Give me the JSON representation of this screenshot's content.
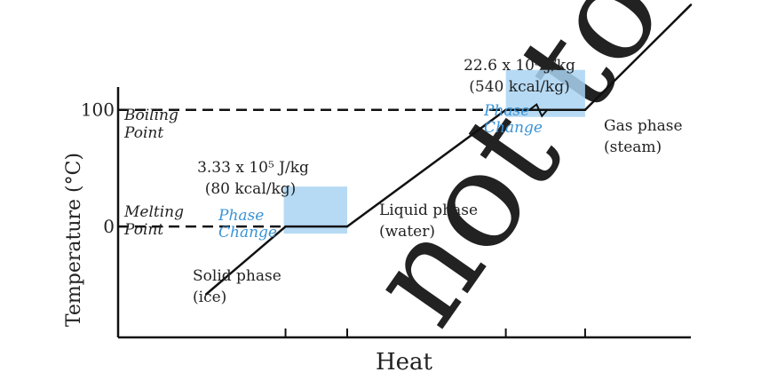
{
  "colors": {
    "axis": "#111111",
    "curve": "#111111",
    "phase_box": "#a9d4f2",
    "phase_text": "#3a93d6",
    "label": "#222222",
    "watermark": "#e8e8e8"
  },
  "watermark_text": "not to",
  "chart_data": {
    "type": "line",
    "xlabel": "Heat",
    "ylabel": "Temperature (°C)",
    "y_ticks": [
      {
        "value": 0,
        "label": "0"
      },
      {
        "value": 100,
        "label": "100"
      }
    ],
    "x_tick_count": 4,
    "grid": false,
    "series": [
      {
        "points": [
          {
            "x": 0.1,
            "y": -58
          },
          {
            "x": 1.0,
            "y": 0
          },
          {
            "x": 1.7,
            "y": 0
          },
          {
            "x": 3.5,
            "y": 100
          },
          {
            "x": 4.4,
            "y": 100
          },
          {
            "x": 5.6,
            "y": 190
          }
        ]
      }
    ],
    "x_tick_positions": [
      1.0,
      1.7,
      3.5,
      4.4
    ],
    "x_range": [
      -0.9,
      5.6
    ],
    "y_range": [
      -95,
      150
    ],
    "reference_lines": [
      {
        "axis": "y",
        "value": 100,
        "label_line1": "Boiling",
        "label_line2": "Point"
      },
      {
        "axis": "y",
        "value": 0,
        "label_line1": "Melting",
        "label_line2": "Point"
      }
    ],
    "phase_change_boxes": [
      {
        "x_from": 1.0,
        "x_to": 1.7,
        "y_center": 0,
        "line1": "Phase",
        "line2": "Change"
      },
      {
        "x_from": 3.5,
        "x_to": 4.4,
        "y_center": 100,
        "line1": "Phase",
        "line2": "Change"
      }
    ],
    "annotations": {
      "melting_latent_line1": "3.33 x 10⁵ J/kg",
      "melting_latent_line2": "(80 kcal/kg)",
      "boiling_latent_line1": "22.6 x 10⁵ J/kg",
      "boiling_latent_line2": "(540 kcal/kg)",
      "solid_line1": "Solid phase",
      "solid_line2": "(ice)",
      "liquid_line1": "Liquid phase",
      "liquid_line2": "(water)",
      "gas_line1": "Gas phase",
      "gas_line2": "(steam)"
    }
  }
}
